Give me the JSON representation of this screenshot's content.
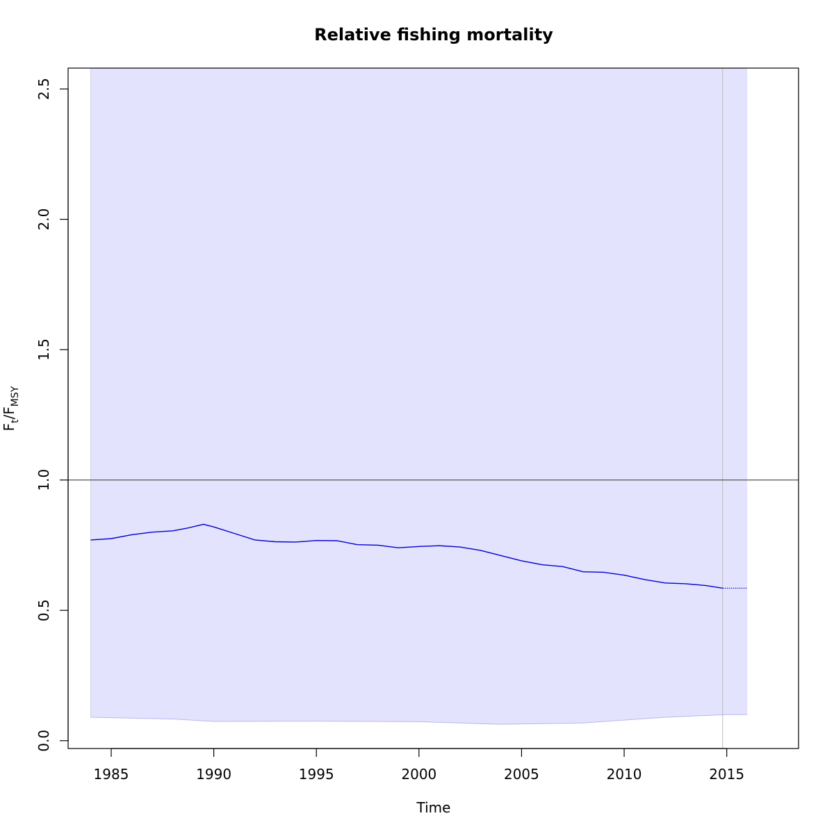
{
  "chart_data": {
    "type": "line",
    "title": "Relative fishing mortality",
    "xlabel": "Time",
    "ylabel": {
      "main": "F",
      "sub1": "t",
      "sep": "/F",
      "sub2": "MSY"
    },
    "xlim": [
      1982.9,
      2018.5
    ],
    "ylim": [
      -0.03,
      2.58
    ],
    "xticks": [
      1985,
      1990,
      1995,
      2000,
      2005,
      2010,
      2015
    ],
    "xtick_labels": [
      "1985",
      "1990",
      "1995",
      "2000",
      "2005",
      "2010",
      "2015"
    ],
    "yticks": [
      0.0,
      0.5,
      1.0,
      1.5,
      2.0,
      2.5
    ],
    "ytick_labels": [
      "0.0",
      "0.5",
      "1.0",
      "1.5",
      "2.0",
      "2.5"
    ],
    "reference_line": {
      "y": 1.0,
      "color": "#555555"
    },
    "current_year_line": {
      "x": 2014.8,
      "color": "#bbbbbb"
    },
    "grid": false,
    "colors": {
      "line": "#0000cc",
      "band": "#e3e3fd",
      "band_edge": "#b8b8f0"
    },
    "series": [
      {
        "kind": "estimate",
        "x": [
          1984,
          1985,
          1986,
          1987,
          1988,
          1988.7,
          1989.5,
          1990,
          1991,
          1992,
          1993,
          1994,
          1995,
          1996,
          1997,
          1998,
          1999,
          2000,
          2001,
          2002,
          2003,
          2004,
          2005,
          2006,
          2007,
          2008,
          2009,
          2010,
          2011,
          2012,
          2013,
          2014,
          2014.8
        ],
        "y": [
          0.77,
          0.775,
          0.79,
          0.8,
          0.805,
          0.815,
          0.83,
          0.82,
          0.795,
          0.77,
          0.763,
          0.762,
          0.768,
          0.767,
          0.752,
          0.75,
          0.74,
          0.745,
          0.748,
          0.743,
          0.73,
          0.71,
          0.69,
          0.675,
          0.668,
          0.648,
          0.646,
          0.635,
          0.618,
          0.605,
          0.602,
          0.595,
          0.585
        ]
      },
      {
        "kind": "prediction",
        "x": [
          2014.8,
          2016
        ],
        "y": [
          0.585,
          0.585
        ]
      }
    ],
    "confidence_band": {
      "x": [
        1984,
        1988,
        1990,
        1995,
        2000,
        2004,
        2008,
        2012,
        2015,
        2016
      ],
      "lower": [
        0.09,
        0.083,
        0.074,
        0.075,
        0.073,
        0.063,
        0.068,
        0.09,
        0.1,
        0.1
      ],
      "upper": [
        2.6,
        2.6,
        2.6,
        2.6,
        2.6,
        2.6,
        2.6,
        2.6,
        2.6,
        2.6
      ]
    }
  }
}
